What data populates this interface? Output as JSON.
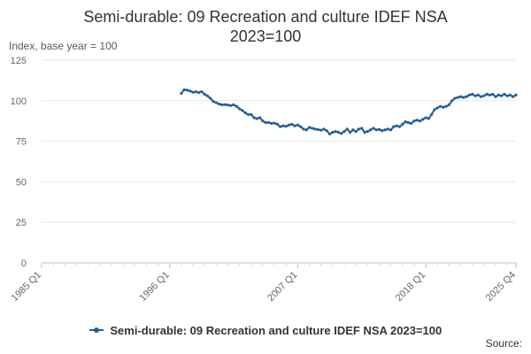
{
  "chart_data": {
    "type": "line",
    "title_line1": "Semi-durable: 09 Recreation and culture IDEF NSA",
    "title_line2": "2023=100",
    "unit_label": "Index, base year = 100",
    "xlabel": "",
    "ylabel": "",
    "x_range": [
      1985,
      2025.75
    ],
    "ylim": [
      0,
      125
    ],
    "y_ticks": [
      0,
      25,
      50,
      75,
      100,
      125
    ],
    "x_ticks": [
      {
        "label": "1985 Q1",
        "t": 1985
      },
      {
        "label": "1996 Q1",
        "t": 1996
      },
      {
        "label": "2007 Q1",
        "t": 2007
      },
      {
        "label": "2018 Q1",
        "t": 2018
      },
      {
        "label": "2025 Q4",
        "t": 2025.75
      }
    ],
    "legend_position": "bottom",
    "source_label": "Source:",
    "color": "#206095",
    "series": [
      {
        "name": "Semi-durable: 09 Recreation and culture IDEF NSA 2023=100",
        "values": [
          [
            1997.0,
            104.5
          ],
          [
            1997.25,
            106.8
          ],
          [
            1997.5,
            106.5
          ],
          [
            1997.75,
            106.0
          ],
          [
            1998.0,
            105.2
          ],
          [
            1998.25,
            105.5
          ],
          [
            1998.5,
            105.0
          ],
          [
            1998.75,
            105.6
          ],
          [
            1999.0,
            104.0
          ],
          [
            1999.25,
            103.0
          ],
          [
            1999.5,
            101.5
          ],
          [
            1999.75,
            99.5
          ],
          [
            2000.0,
            98.8
          ],
          [
            2000.25,
            98.0
          ],
          [
            2000.5,
            97.5
          ],
          [
            2000.75,
            97.6
          ],
          [
            2001.0,
            97.4
          ],
          [
            2001.25,
            97.0
          ],
          [
            2001.5,
            97.5
          ],
          [
            2001.75,
            96.5
          ],
          [
            2002.0,
            95.0
          ],
          [
            2002.25,
            94.0
          ],
          [
            2002.5,
            92.5
          ],
          [
            2002.75,
            91.5
          ],
          [
            2003.0,
            91.5
          ],
          [
            2003.25,
            89.5
          ],
          [
            2003.5,
            89.0
          ],
          [
            2003.75,
            89.5
          ],
          [
            2004.0,
            87.5
          ],
          [
            2004.25,
            86.5
          ],
          [
            2004.5,
            86.5
          ],
          [
            2004.75,
            86.0
          ],
          [
            2005.0,
            86.2
          ],
          [
            2005.25,
            85.5
          ],
          [
            2005.5,
            84.0
          ],
          [
            2005.75,
            84.5
          ],
          [
            2006.0,
            84.2
          ],
          [
            2006.25,
            85.0
          ],
          [
            2006.5,
            85.5
          ],
          [
            2006.75,
            84.5
          ],
          [
            2007.0,
            85.0
          ],
          [
            2007.25,
            84.0
          ],
          [
            2007.5,
            82.5
          ],
          [
            2007.75,
            82.0
          ],
          [
            2008.0,
            83.5
          ],
          [
            2008.25,
            83.0
          ],
          [
            2008.5,
            82.5
          ],
          [
            2008.75,
            82.2
          ],
          [
            2009.0,
            81.8
          ],
          [
            2009.25,
            82.5
          ],
          [
            2009.5,
            81.5
          ],
          [
            2009.75,
            79.5
          ],
          [
            2010.0,
            80.5
          ],
          [
            2010.25,
            81.0
          ],
          [
            2010.5,
            80.5
          ],
          [
            2010.75,
            79.8
          ],
          [
            2011.0,
            81.0
          ],
          [
            2011.25,
            82.5
          ],
          [
            2011.5,
            80.5
          ],
          [
            2011.75,
            82.0
          ],
          [
            2012.0,
            81.0
          ],
          [
            2012.25,
            82.5
          ],
          [
            2012.5,
            83.0
          ],
          [
            2012.75,
            80.5
          ],
          [
            2013.0,
            81.0
          ],
          [
            2013.25,
            82.0
          ],
          [
            2013.5,
            83.0
          ],
          [
            2013.75,
            82.0
          ],
          [
            2014.0,
            82.3
          ],
          [
            2014.25,
            81.5
          ],
          [
            2014.5,
            82.0
          ],
          [
            2014.75,
            82.5
          ],
          [
            2015.0,
            82.0
          ],
          [
            2015.25,
            84.0
          ],
          [
            2015.5,
            84.5
          ],
          [
            2015.75,
            84.0
          ],
          [
            2016.0,
            85.5
          ],
          [
            2016.25,
            87.0
          ],
          [
            2016.5,
            86.5
          ],
          [
            2016.75,
            86.0
          ],
          [
            2017.0,
            87.5
          ],
          [
            2017.25,
            88.0
          ],
          [
            2017.5,
            87.5
          ],
          [
            2017.75,
            88.5
          ],
          [
            2018.0,
            89.5
          ],
          [
            2018.25,
            89.0
          ],
          [
            2018.5,
            91.5
          ],
          [
            2018.75,
            94.5
          ],
          [
            2019.0,
            95.5
          ],
          [
            2019.25,
            96.5
          ],
          [
            2019.5,
            96.0
          ],
          [
            2019.75,
            96.5
          ],
          [
            2020.0,
            97.5
          ],
          [
            2020.25,
            100.0
          ],
          [
            2020.5,
            101.5
          ],
          [
            2020.75,
            102.0
          ],
          [
            2021.0,
            102.5
          ],
          [
            2021.25,
            102.0
          ],
          [
            2021.5,
            102.5
          ],
          [
            2021.75,
            103.5
          ],
          [
            2022.0,
            104.0
          ],
          [
            2022.25,
            103.0
          ],
          [
            2022.5,
            103.5
          ],
          [
            2022.75,
            102.5
          ],
          [
            2023.0,
            103.0
          ],
          [
            2023.25,
            104.0
          ],
          [
            2023.5,
            103.5
          ],
          [
            2023.75,
            104.0
          ],
          [
            2024.0,
            102.5
          ],
          [
            2024.25,
            103.5
          ],
          [
            2024.5,
            103.0
          ],
          [
            2024.75,
            104.0
          ],
          [
            2025.0,
            103.0
          ],
          [
            2025.25,
            103.5
          ],
          [
            2025.5,
            102.5
          ],
          [
            2025.75,
            103.5
          ]
        ]
      }
    ]
  }
}
